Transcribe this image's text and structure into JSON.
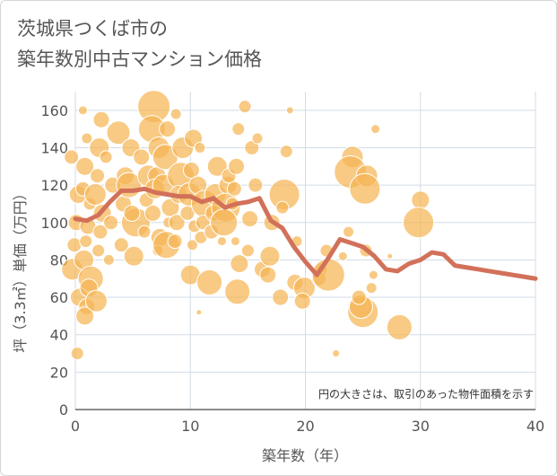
{
  "chart_data": {
    "type": "scatter",
    "title_lines": [
      "茨城県つくば市の",
      "築年数別中古マンション価格"
    ],
    "xlabel": "築年数（年）",
    "ylabel": "坪（3.3㎡）単価（万円）",
    "xlim": [
      0,
      40
    ],
    "ylim": [
      0,
      170
    ],
    "x_ticks": [
      0,
      10,
      20,
      30,
      40
    ],
    "y_ticks": [
      0,
      20,
      40,
      60,
      80,
      100,
      120,
      140,
      160
    ],
    "note": "円の大きさは、取引のあった物件面積を示す",
    "grid": true,
    "colors": {
      "bubble": "#f5b655",
      "bubble_edge": "#ffffff",
      "trend": "#d2715a",
      "grid": "#d2dbe4",
      "axis": "#666666"
    },
    "points": [
      {
        "x": 0,
        "y": 135,
        "s": 8
      },
      {
        "x": 0,
        "y": 115,
        "s": 10
      },
      {
        "x": 0,
        "y": 100,
        "s": 9
      },
      {
        "x": 0,
        "y": 88,
        "s": 8
      },
      {
        "x": 0,
        "y": 75,
        "s": 12
      },
      {
        "x": 0,
        "y": 60,
        "s": 10
      },
      {
        "x": 0,
        "y": 30,
        "s": 7
      },
      {
        "x": 1,
        "y": 145,
        "s": 6
      },
      {
        "x": 1,
        "y": 130,
        "s": 10
      },
      {
        "x": 1,
        "y": 118,
        "s": 8
      },
      {
        "x": 1,
        "y": 110,
        "s": 7
      },
      {
        "x": 1,
        "y": 98,
        "s": 9
      },
      {
        "x": 1,
        "y": 90,
        "s": 7
      },
      {
        "x": 1,
        "y": 80,
        "s": 11
      },
      {
        "x": 1,
        "y": 70,
        "s": 14
      },
      {
        "x": 1,
        "y": 65,
        "s": 10
      },
      {
        "x": 1,
        "y": 55,
        "s": 9
      },
      {
        "x": 1,
        "y": 50,
        "s": 10
      },
      {
        "x": 1,
        "y": 160,
        "s": 5
      },
      {
        "x": 2,
        "y": 155,
        "s": 9
      },
      {
        "x": 2,
        "y": 140,
        "s": 11
      },
      {
        "x": 2,
        "y": 125,
        "s": 8
      },
      {
        "x": 2,
        "y": 115,
        "s": 12
      },
      {
        "x": 2,
        "y": 105,
        "s": 10
      },
      {
        "x": 2,
        "y": 95,
        "s": 8
      },
      {
        "x": 2,
        "y": 85,
        "s": 7
      },
      {
        "x": 2,
        "y": 58,
        "s": 12
      },
      {
        "x": 3,
        "y": 135,
        "s": 7
      },
      {
        "x": 3,
        "y": 120,
        "s": 9
      },
      {
        "x": 3,
        "y": 100,
        "s": 8
      },
      {
        "x": 3,
        "y": 80,
        "s": 6
      },
      {
        "x": 4,
        "y": 148,
        "s": 13
      },
      {
        "x": 4,
        "y": 125,
        "s": 10
      },
      {
        "x": 4,
        "y": 110,
        "s": 9
      },
      {
        "x": 4,
        "y": 88,
        "s": 8
      },
      {
        "x": 5,
        "y": 140,
        "s": 10
      },
      {
        "x": 5,
        "y": 120,
        "s": 14
      },
      {
        "x": 5,
        "y": 100,
        "s": 16
      },
      {
        "x": 5,
        "y": 82,
        "s": 11
      },
      {
        "x": 5,
        "y": 105,
        "s": 9
      },
      {
        "x": 6,
        "y": 135,
        "s": 9
      },
      {
        "x": 6,
        "y": 125,
        "s": 12
      },
      {
        "x": 6,
        "y": 112,
        "s": 8
      },
      {
        "x": 6,
        "y": 95,
        "s": 7
      },
      {
        "x": 7,
        "y": 162,
        "s": 18
      },
      {
        "x": 7,
        "y": 150,
        "s": 15
      },
      {
        "x": 7,
        "y": 140,
        "s": 12
      },
      {
        "x": 7,
        "y": 125,
        "s": 10
      },
      {
        "x": 7,
        "y": 118,
        "s": 11
      },
      {
        "x": 7,
        "y": 105,
        "s": 9
      },
      {
        "x": 7,
        "y": 92,
        "s": 10
      },
      {
        "x": 7,
        "y": 85,
        "s": 6
      },
      {
        "x": 8,
        "y": 150,
        "s": 9
      },
      {
        "x": 8,
        "y": 135,
        "s": 14
      },
      {
        "x": 8,
        "y": 120,
        "s": 12
      },
      {
        "x": 8,
        "y": 108,
        "s": 10
      },
      {
        "x": 8,
        "y": 100,
        "s": 6
      },
      {
        "x": 8,
        "y": 88,
        "s": 15
      },
      {
        "x": 9,
        "y": 158,
        "s": 6
      },
      {
        "x": 9,
        "y": 140,
        "s": 12
      },
      {
        "x": 9,
        "y": 125,
        "s": 15
      },
      {
        "x": 9,
        "y": 115,
        "s": 10
      },
      {
        "x": 9,
        "y": 100,
        "s": 9
      },
      {
        "x": 9,
        "y": 90,
        "s": 8
      },
      {
        "x": 10,
        "y": 145,
        "s": 10
      },
      {
        "x": 10,
        "y": 128,
        "s": 9
      },
      {
        "x": 10,
        "y": 115,
        "s": 13
      },
      {
        "x": 10,
        "y": 105,
        "s": 8
      },
      {
        "x": 10,
        "y": 98,
        "s": 7
      },
      {
        "x": 10,
        "y": 88,
        "s": 6
      },
      {
        "x": 10,
        "y": 72,
        "s": 11
      },
      {
        "x": 11,
        "y": 140,
        "s": 6
      },
      {
        "x": 11,
        "y": 120,
        "s": 10
      },
      {
        "x": 11,
        "y": 110,
        "s": 15
      },
      {
        "x": 11,
        "y": 100,
        "s": 8
      },
      {
        "x": 11,
        "y": 92,
        "s": 7
      },
      {
        "x": 11,
        "y": 52,
        "s": 3
      },
      {
        "x": 12,
        "y": 130,
        "s": 11
      },
      {
        "x": 12,
        "y": 115,
        "s": 12
      },
      {
        "x": 12,
        "y": 105,
        "s": 9
      },
      {
        "x": 12,
        "y": 95,
        "s": 8
      },
      {
        "x": 12,
        "y": 68,
        "s": 14
      },
      {
        "x": 13,
        "y": 120,
        "s": 10
      },
      {
        "x": 13,
        "y": 108,
        "s": 16
      },
      {
        "x": 13,
        "y": 100,
        "s": 15
      },
      {
        "x": 13,
        "y": 90,
        "s": 5
      },
      {
        "x": 13,
        "y": 125,
        "s": 8
      },
      {
        "x": 14,
        "y": 150,
        "s": 7
      },
      {
        "x": 14,
        "y": 130,
        "s": 9
      },
      {
        "x": 14,
        "y": 118,
        "s": 8
      },
      {
        "x": 14,
        "y": 110,
        "s": 7
      },
      {
        "x": 14,
        "y": 78,
        "s": 10
      },
      {
        "x": 14,
        "y": 63,
        "s": 14
      },
      {
        "x": 14,
        "y": 90,
        "s": 5
      },
      {
        "x": 15,
        "y": 162,
        "s": 7
      },
      {
        "x": 15,
        "y": 140,
        "s": 8
      },
      {
        "x": 15,
        "y": 102,
        "s": 9
      },
      {
        "x": 15,
        "y": 85,
        "s": 7
      },
      {
        "x": 16,
        "y": 145,
        "s": 6
      },
      {
        "x": 16,
        "y": 120,
        "s": 8
      },
      {
        "x": 16,
        "y": 75,
        "s": 9
      },
      {
        "x": 17,
        "y": 100,
        "s": 9
      },
      {
        "x": 17,
        "y": 82,
        "s": 11
      },
      {
        "x": 17,
        "y": 72,
        "s": 9
      },
      {
        "x": 18,
        "y": 138,
        "s": 7
      },
      {
        "x": 18,
        "y": 115,
        "s": 17
      },
      {
        "x": 18,
        "y": 108,
        "s": 7
      },
      {
        "x": 18,
        "y": 60,
        "s": 9
      },
      {
        "x": 19,
        "y": 160,
        "s": 4
      },
      {
        "x": 19,
        "y": 90,
        "s": 6
      },
      {
        "x": 19,
        "y": 68,
        "s": 9
      },
      {
        "x": 20,
        "y": 65,
        "s": 12
      },
      {
        "x": 20,
        "y": 58,
        "s": 9
      },
      {
        "x": 21,
        "y": 75,
        "s": 7
      },
      {
        "x": 21,
        "y": 70,
        "s": 8
      },
      {
        "x": 22,
        "y": 72,
        "s": 18
      },
      {
        "x": 22,
        "y": 85,
        "s": 7
      },
      {
        "x": 23,
        "y": 30,
        "s": 4
      },
      {
        "x": 23,
        "y": 82,
        "s": 5
      },
      {
        "x": 24,
        "y": 135,
        "s": 12
      },
      {
        "x": 24,
        "y": 127,
        "s": 18
      },
      {
        "x": 24,
        "y": 95,
        "s": 6
      },
      {
        "x": 25,
        "y": 125,
        "s": 12
      },
      {
        "x": 25,
        "y": 118,
        "s": 17
      },
      {
        "x": 25,
        "y": 52,
        "s": 17
      },
      {
        "x": 25,
        "y": 55,
        "s": 13
      },
      {
        "x": 25,
        "y": 60,
        "s": 8
      },
      {
        "x": 25,
        "y": 85,
        "s": 7
      },
      {
        "x": 26,
        "y": 150,
        "s": 5
      },
      {
        "x": 26,
        "y": 72,
        "s": 5
      },
      {
        "x": 26,
        "y": 65,
        "s": 6
      },
      {
        "x": 27,
        "y": 82,
        "s": 3
      },
      {
        "x": 28,
        "y": 44,
        "s": 14
      },
      {
        "x": 30,
        "y": 112,
        "s": 10
      },
      {
        "x": 30,
        "y": 100,
        "s": 17
      }
    ],
    "trend": {
      "name": "",
      "x": [
        0,
        1,
        2,
        3,
        4,
        5,
        6,
        7,
        8,
        9,
        10,
        11,
        12,
        13,
        14,
        15,
        16,
        17,
        18,
        19,
        20,
        21,
        22,
        23,
        24,
        25,
        26,
        27,
        28,
        29,
        30,
        31,
        32,
        33,
        34,
        35,
        36,
        37,
        38,
        39,
        40
      ],
      "y": [
        102,
        101,
        104,
        111,
        117,
        117,
        118,
        116,
        115,
        114,
        114,
        111,
        113,
        108,
        110,
        111,
        113,
        101,
        97,
        87,
        79,
        72,
        81,
        91,
        89,
        87,
        82,
        75,
        74,
        78,
        80,
        84,
        83,
        77,
        76,
        75,
        74,
        73,
        72,
        71,
        70
      ]
    }
  }
}
